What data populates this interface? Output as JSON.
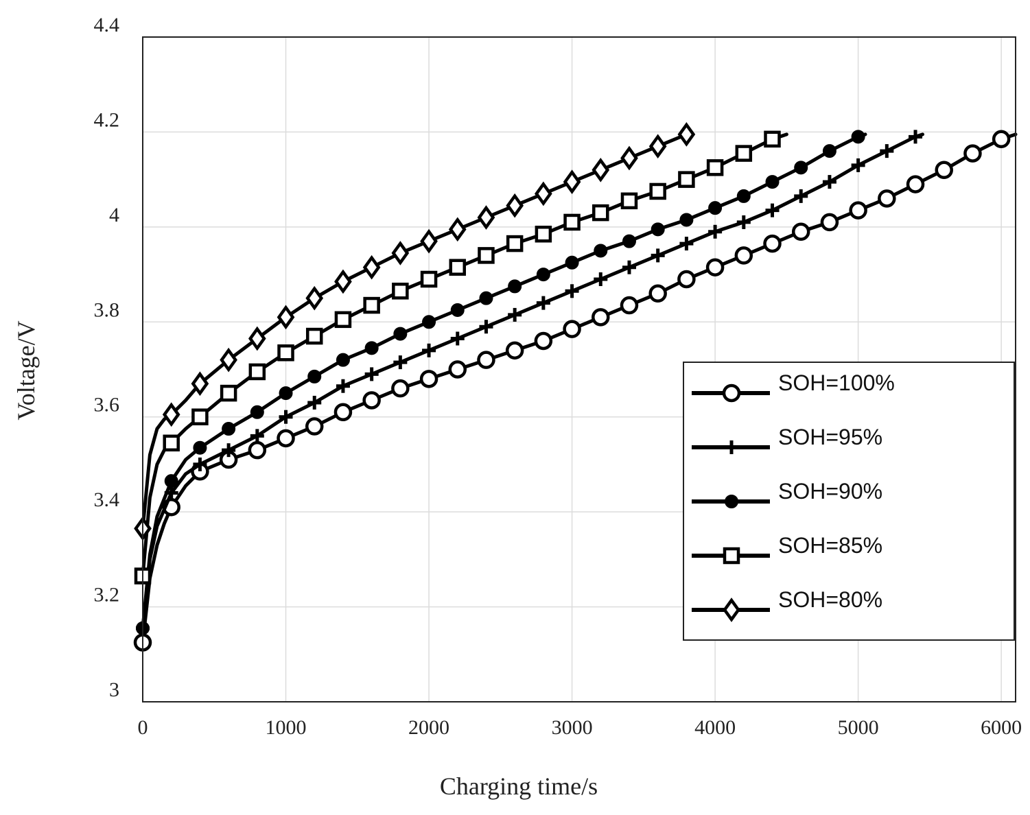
{
  "chart_data": {
    "type": "line",
    "xlabel": "Charging time/s",
    "ylabel": "Voltage/V",
    "xlim": [
      0,
      6100
    ],
    "ylim": [
      3.0,
      4.4
    ],
    "xticks": [
      0,
      1000,
      2000,
      3000,
      4000,
      5000,
      6000
    ],
    "yticks": [
      3.0,
      3.2,
      3.4,
      3.6,
      3.8,
      4.0,
      4.2,
      4.4
    ],
    "xtick_labels": [
      "0",
      "1000",
      "2000",
      "3000",
      "4000",
      "5000",
      "6000"
    ],
    "ytick_labels": [
      "3",
      "3.2",
      "3.4",
      "3.6",
      "3.8",
      "4",
      "4.2",
      "4.4"
    ],
    "grid": true,
    "legend_position": "lower-right",
    "series": [
      {
        "name": "SOH=100%",
        "marker": "circle-open",
        "x": [
          0,
          50,
          100,
          150,
          200,
          300,
          400,
          600,
          800,
          1000,
          1200,
          1400,
          1600,
          1800,
          2000,
          2200,
          2400,
          2600,
          2800,
          3000,
          3200,
          3400,
          3600,
          3800,
          4000,
          4200,
          4400,
          4600,
          4800,
          5000,
          5200,
          5400,
          5600,
          5800,
          6000,
          6100
        ],
        "y": [
          3.125,
          3.26,
          3.33,
          3.375,
          3.41,
          3.455,
          3.485,
          3.51,
          3.53,
          3.555,
          3.58,
          3.61,
          3.635,
          3.66,
          3.68,
          3.7,
          3.72,
          3.74,
          3.76,
          3.785,
          3.81,
          3.835,
          3.86,
          3.89,
          3.915,
          3.94,
          3.965,
          3.99,
          4.01,
          4.035,
          4.06,
          4.09,
          4.12,
          4.155,
          4.185,
          4.195
        ],
        "marker_x": [
          0,
          200,
          400,
          600,
          800,
          1000,
          1200,
          1400,
          1600,
          1800,
          2000,
          2200,
          2400,
          2600,
          2800,
          3000,
          3200,
          3400,
          3600,
          3800,
          4000,
          4200,
          4400,
          4600,
          4800,
          5000,
          5200,
          5400,
          5600,
          5800,
          6000
        ]
      },
      {
        "name": "SOH=95%",
        "marker": "plus",
        "x": [
          0,
          50,
          100,
          200,
          300,
          400,
          600,
          800,
          1000,
          1200,
          1400,
          1600,
          1800,
          2000,
          2200,
          2400,
          2600,
          2800,
          3000,
          3200,
          3400,
          3600,
          3800,
          4000,
          4200,
          4400,
          4600,
          4800,
          5000,
          5200,
          5400,
          5450
        ],
        "y": [
          3.155,
          3.3,
          3.37,
          3.44,
          3.48,
          3.5,
          3.53,
          3.56,
          3.6,
          3.63,
          3.665,
          3.69,
          3.715,
          3.74,
          3.765,
          3.79,
          3.815,
          3.84,
          3.865,
          3.89,
          3.915,
          3.94,
          3.965,
          3.99,
          4.01,
          4.035,
          4.065,
          4.095,
          4.13,
          4.16,
          4.19,
          4.195
        ],
        "marker_x": [
          0,
          200,
          400,
          600,
          800,
          1000,
          1200,
          1400,
          1600,
          1800,
          2000,
          2200,
          2400,
          2600,
          2800,
          3000,
          3200,
          3400,
          3600,
          3800,
          4000,
          4200,
          4400,
          4600,
          4800,
          5000,
          5200,
          5400
        ]
      },
      {
        "name": "SOH=90%",
        "marker": "circle-filled",
        "x": [
          0,
          50,
          100,
          200,
          300,
          400,
          600,
          800,
          1000,
          1200,
          1400,
          1600,
          1800,
          2000,
          2200,
          2400,
          2600,
          2800,
          3000,
          3200,
          3400,
          3600,
          3800,
          4000,
          4200,
          4400,
          4600,
          4800,
          5000,
          5050
        ],
        "y": [
          3.155,
          3.31,
          3.39,
          3.465,
          3.51,
          3.535,
          3.575,
          3.61,
          3.65,
          3.685,
          3.72,
          3.745,
          3.775,
          3.8,
          3.825,
          3.85,
          3.875,
          3.9,
          3.925,
          3.95,
          3.97,
          3.995,
          4.015,
          4.04,
          4.065,
          4.095,
          4.125,
          4.16,
          4.19,
          4.195
        ],
        "marker_x": [
          0,
          200,
          400,
          600,
          800,
          1000,
          1200,
          1400,
          1600,
          1800,
          2000,
          2200,
          2400,
          2600,
          2800,
          3000,
          3200,
          3400,
          3600,
          3800,
          4000,
          4200,
          4400,
          4600,
          4800,
          5000
        ]
      },
      {
        "name": "SOH=85%",
        "marker": "square",
        "x": [
          0,
          50,
          100,
          150,
          200,
          300,
          400,
          600,
          800,
          1000,
          1200,
          1400,
          1600,
          1800,
          2000,
          2200,
          2400,
          2600,
          2800,
          3000,
          3200,
          3400,
          3600,
          3800,
          4000,
          4200,
          4400,
          4500
        ],
        "y": [
          3.265,
          3.43,
          3.5,
          3.53,
          3.545,
          3.575,
          3.6,
          3.65,
          3.695,
          3.735,
          3.77,
          3.805,
          3.835,
          3.865,
          3.89,
          3.915,
          3.94,
          3.965,
          3.985,
          4.01,
          4.03,
          4.055,
          4.075,
          4.1,
          4.125,
          4.155,
          4.185,
          4.195
        ],
        "marker_x": [
          0,
          200,
          400,
          600,
          800,
          1000,
          1200,
          1400,
          1600,
          1800,
          2000,
          2200,
          2400,
          2600,
          2800,
          3000,
          3200,
          3400,
          3600,
          3800,
          4000,
          4200,
          4400
        ]
      },
      {
        "name": "SOH=80%",
        "marker": "diamond",
        "x": [
          0,
          50,
          100,
          150,
          200,
          300,
          400,
          600,
          800,
          1000,
          1200,
          1400,
          1600,
          1800,
          2000,
          2200,
          2400,
          2600,
          2800,
          3000,
          3200,
          3400,
          3600,
          3800
        ],
        "y": [
          3.365,
          3.52,
          3.575,
          3.595,
          3.605,
          3.635,
          3.67,
          3.72,
          3.765,
          3.81,
          3.85,
          3.885,
          3.915,
          3.945,
          3.97,
          3.995,
          4.02,
          4.045,
          4.07,
          4.095,
          4.12,
          4.145,
          4.17,
          4.195
        ],
        "marker_x": [
          0,
          200,
          400,
          600,
          800,
          1000,
          1200,
          1400,
          1600,
          1800,
          2000,
          2200,
          2400,
          2600,
          2800,
          3000,
          3200,
          3400,
          3600,
          3800
        ]
      }
    ]
  }
}
